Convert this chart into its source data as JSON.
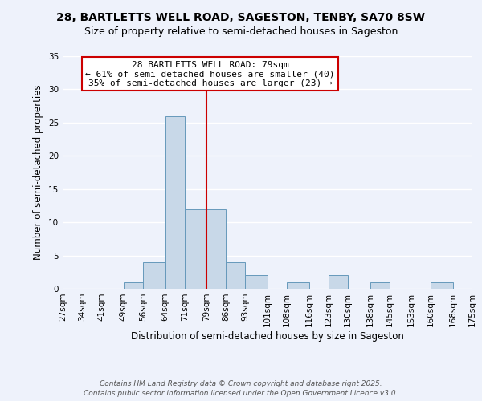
{
  "title": "28, BARTLETTS WELL ROAD, SAGESTON, TENBY, SA70 8SW",
  "subtitle": "Size of property relative to semi-detached houses in Sageston",
  "xlabel": "Distribution of semi-detached houses by size in Sageston",
  "ylabel": "Number of semi-detached properties",
  "bin_edges": [
    27,
    34,
    41,
    49,
    56,
    64,
    71,
    79,
    86,
    93,
    101,
    108,
    116,
    123,
    130,
    138,
    145,
    153,
    160,
    168,
    175
  ],
  "bin_labels": [
    "27sqm",
    "34sqm",
    "41sqm",
    "49sqm",
    "56sqm",
    "64sqm",
    "71sqm",
    "79sqm",
    "86sqm",
    "93sqm",
    "101sqm",
    "108sqm",
    "116sqm",
    "123sqm",
    "130sqm",
    "138sqm",
    "145sqm",
    "153sqm",
    "160sqm",
    "168sqm",
    "175sqm"
  ],
  "counts": [
    0,
    0,
    0,
    1,
    4,
    26,
    12,
    12,
    4,
    2,
    0,
    1,
    0,
    2,
    0,
    1,
    0,
    0,
    1,
    0
  ],
  "bar_color": "#c8d8e8",
  "bar_edge_color": "#6699bb",
  "vline_x": 79,
  "vline_color": "#cc0000",
  "annotation_title": "28 BARTLETTS WELL ROAD: 79sqm",
  "annotation_line1": "← 61% of semi-detached houses are smaller (40)",
  "annotation_line2": "35% of semi-detached houses are larger (23) →",
  "annotation_box_color": "#ffffff",
  "annotation_box_edge": "#cc0000",
  "ylim": [
    0,
    35
  ],
  "yticks": [
    0,
    5,
    10,
    15,
    20,
    25,
    30,
    35
  ],
  "footer1": "Contains HM Land Registry data © Crown copyright and database right 2025.",
  "footer2": "Contains public sector information licensed under the Open Government Licence v3.0.",
  "background_color": "#eef2fb",
  "grid_color": "#ffffff",
  "title_fontsize": 10,
  "subtitle_fontsize": 9,
  "axis_label_fontsize": 8.5,
  "tick_fontsize": 7.5,
  "annotation_fontsize": 8,
  "footer_fontsize": 6.5
}
